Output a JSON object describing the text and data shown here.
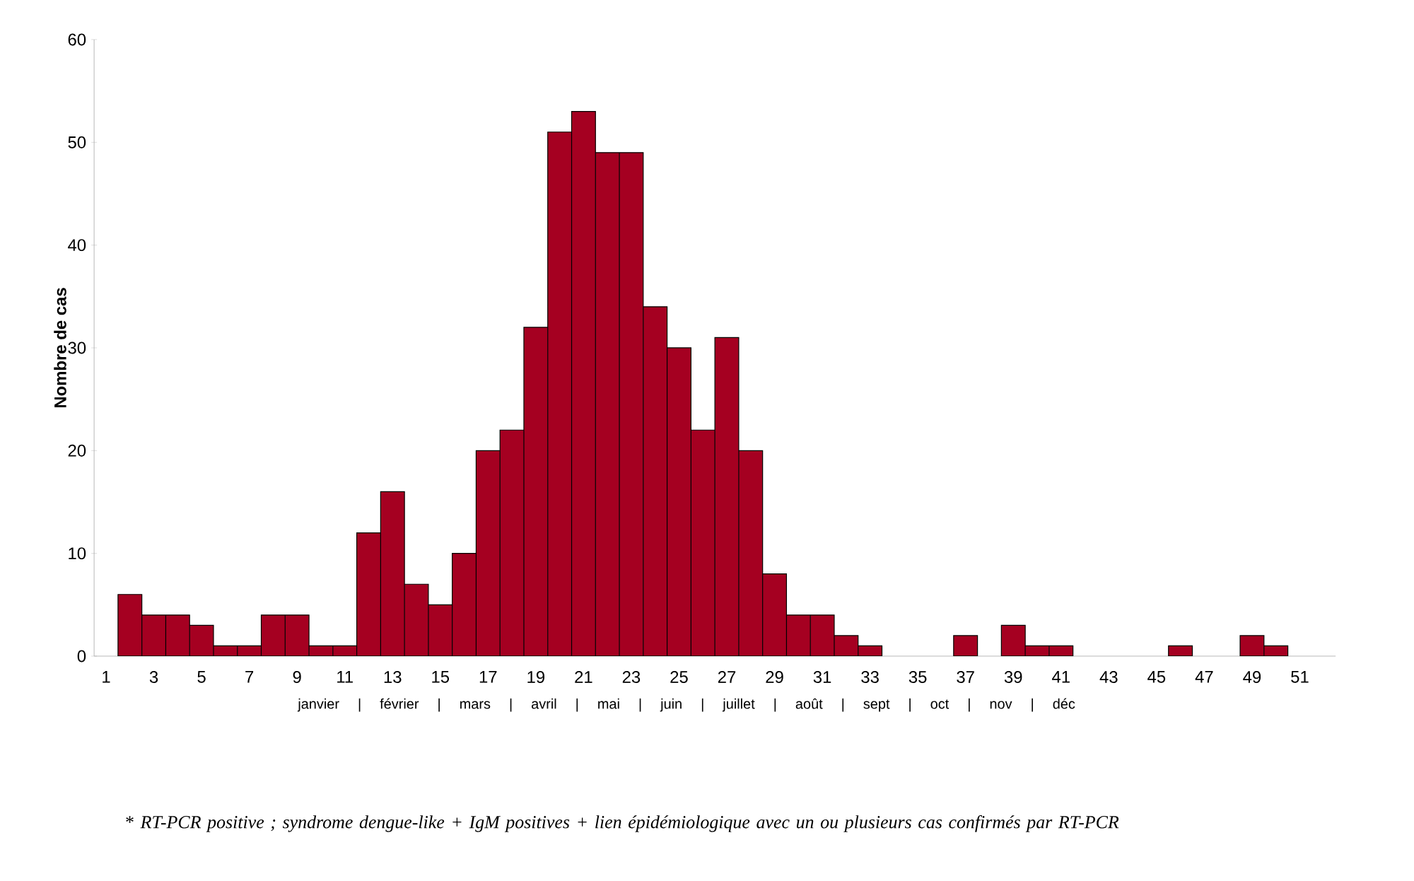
{
  "chart_data": {
    "type": "bar",
    "categories": [
      "1",
      null,
      "3",
      null,
      "5",
      null,
      "7",
      null,
      "9",
      null,
      "11",
      null,
      "13",
      null,
      "15",
      null,
      "17",
      null,
      "19",
      null,
      "21",
      null,
      "23",
      null,
      "25",
      null,
      "27",
      null,
      "29",
      null,
      "31",
      null,
      "33",
      null,
      "35",
      null,
      "37",
      null,
      "39",
      null,
      "41",
      null,
      "43",
      null,
      "45",
      null,
      "47",
      null,
      "49",
      null,
      "51",
      null
    ],
    "values": [
      0,
      6,
      4,
      4,
      3,
      1,
      1,
      4,
      4,
      1,
      1,
      12,
      16,
      7,
      5,
      10,
      20,
      22,
      32,
      51,
      53,
      49,
      49,
      34,
      30,
      22,
      31,
      20,
      8,
      4,
      4,
      2,
      1,
      0,
      0,
      0,
      2,
      0,
      3,
      1,
      1,
      0,
      0,
      0,
      0,
      1,
      0,
      0,
      2,
      1,
      0,
      0
    ],
    "color": "#a50021",
    "ylim": [
      0,
      60
    ],
    "yticks": [
      0,
      10,
      20,
      30,
      40,
      50,
      60
    ],
    "ylabel": "Nombre de cas",
    "xlabel": "janvier | février | mars | avril | mai | juin | juillet | août | sept | oct | nov | déc",
    "annotations": [
      "* *RT-PCR positive ; syndrome dengue-like + IgM positives + lien épidémiologique avec un ou plusieurs cas confirmés par RT-PCR*"
    ]
  }
}
